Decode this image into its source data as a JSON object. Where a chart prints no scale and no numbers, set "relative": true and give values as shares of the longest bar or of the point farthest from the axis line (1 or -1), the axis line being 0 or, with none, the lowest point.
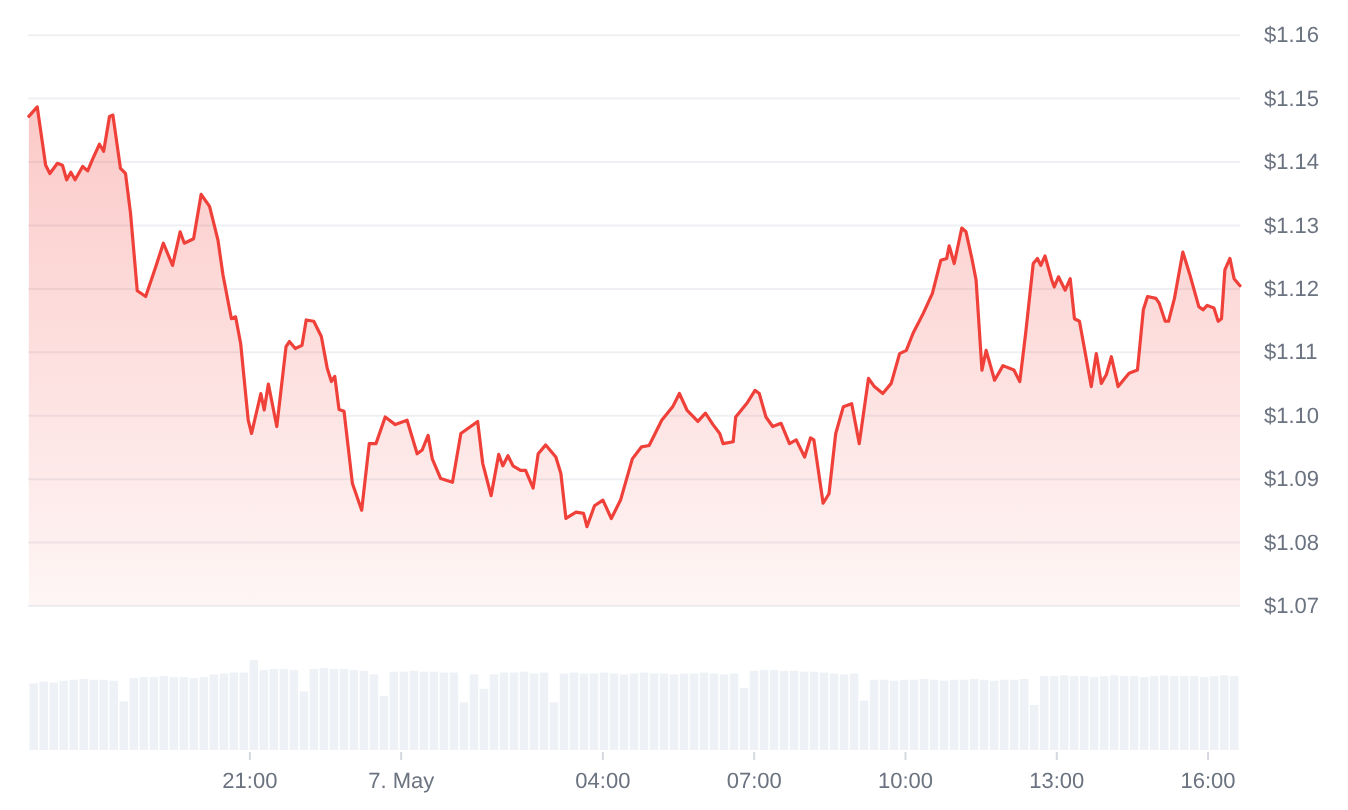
{
  "chart_data": [
    {
      "type": "area",
      "x": [
        "--05-06T16:37",
        "--05-06T16:47",
        "--05-06T16:57",
        "--05-06T17:02",
        "--05-06T17:11",
        "--05-06T17:17",
        "--05-06T17:22",
        "--05-06T17:27",
        "--05-06T17:32",
        "--05-06T17:41",
        "--05-06T17:47",
        "--05-06T17:53",
        "--05-06T18:01",
        "--05-06T18:06",
        "--05-06T18:13",
        "--05-06T18:17",
        "--05-06T18:26",
        "--05-06T18:32",
        "--05-06T18:38",
        "--05-06T18:46",
        "--05-06T18:56",
        "--05-06T19:08",
        "--05-06T19:17",
        "--05-06T19:28",
        "--05-06T19:37",
        "--05-06T19:42",
        "--05-06T19:53",
        "--05-06T20:02",
        "--05-06T20:12",
        "--05-06T20:22",
        "--05-06T20:28",
        "--05-06T20:38",
        "--05-06T20:43",
        "--05-06T20:49",
        "--05-06T20:58",
        "--05-06T21:02",
        "--05-06T21:13",
        "--05-06T21:17",
        "--05-06T21:22",
        "--05-06T21:32",
        "--05-06T21:43",
        "--05-06T21:47",
        "--05-06T21:54",
        "--05-06T22:02",
        "--05-06T22:07",
        "--05-06T22:16",
        "--05-06T22:25",
        "--05-06T22:32",
        "--05-06T22:37",
        "--05-06T22:41",
        "--05-06T22:46",
        "--05-06T22:52",
        "--05-06T23:02",
        "--05-06T23:13",
        "--05-06T23:22",
        "--05-06T23:30",
        "--05-06T23:41",
        "--05-06T23:53",
        "--05-07T00:07",
        "--05-07T00:19",
        "--05-07T00:25",
        "--05-07T00:32",
        "--05-07T00:37",
        "--05-07T00:47",
        "--05-07T01:01",
        "--05-07T01:11",
        "--05-07T01:31",
        "--05-07T01:37",
        "--05-07T01:47",
        "--05-07T01:56",
        "--05-07T02:01",
        "--05-07T02:07",
        "--05-07T02:13",
        "--05-07T02:22",
        "--05-07T02:28",
        "--05-07T02:37",
        "--05-07T02:43",
        "--05-07T02:52",
        "--05-07T03:04",
        "--05-07T03:10",
        "--05-07T03:16",
        "--05-07T03:28",
        "--05-07T03:37",
        "--05-07T03:41",
        "--05-07T03:50",
        "--05-07T04:00",
        "--05-07T04:10",
        "--05-07T04:21",
        "--05-07T04:35",
        "--05-07T04:46",
        "--05-07T04:55",
        "--05-07T05:10",
        "--05-07T05:23",
        "--05-07T05:31",
        "--05-07T05:40",
        "--05-07T05:53",
        "--05-07T06:02",
        "--05-07T06:11",
        "--05-07T06:19",
        "--05-07T06:23",
        "--05-07T06:35",
        "--05-07T06:38",
        "--05-07T06:52",
        "--05-07T07:01",
        "--05-07T07:06",
        "--05-07T07:14",
        "--05-07T07:22",
        "--05-07T07:32",
        "--05-07T07:42",
        "--05-07T07:50",
        "--05-07T08:00",
        "--05-07T08:07",
        "--05-07T08:11",
        "--05-07T08:22",
        "--05-07T08:29",
        "--05-07T08:37",
        "--05-07T08:46",
        "--05-07T08:56",
        "--05-07T09:05",
        "--05-07T09:16",
        "--05-07T09:23",
        "--05-07T09:33",
        "--05-07T09:43",
        "--05-07T09:53",
        "--05-07T10:01",
        "--05-07T10:09",
        "--05-07T10:21",
        "--05-07T10:32",
        "--05-07T10:42",
        "--05-07T10:49",
        "--05-07T10:52",
        "--05-07T10:58",
        "--05-07T11:07",
        "--05-07T11:12",
        "--05-07T11:19",
        "--05-07T11:24",
        "--05-07T11:31",
        "--05-07T11:36",
        "--05-07T11:46",
        "--05-07T11:56",
        "--05-07T12:09",
        "--05-07T12:16",
        "--05-07T12:23",
        "--05-07T12:32",
        "--05-07T12:37",
        "--05-07T12:41",
        "--05-07T12:46",
        "--05-07T12:54",
        "--05-07T12:57",
        "--05-07T13:02",
        "--05-07T13:10",
        "--05-07T13:16",
        "--05-07T13:21",
        "--05-07T13:27",
        "--05-07T13:34",
        "--05-07T13:41",
        "--05-07T13:47",
        "--05-07T13:53",
        "--05-07T13:59",
        "--05-07T14:05",
        "--05-07T14:13",
        "--05-07T14:26",
        "--05-07T14:36",
        "--05-07T14:43",
        "--05-07T14:48",
        "--05-07T14:58",
        "--05-07T15:02",
        "--05-07T15:09",
        "--05-07T15:13",
        "--05-07T15:20",
        "--05-07T15:30",
        "--05-07T15:38",
        "--05-07T15:49",
        "--05-07T15:54",
        "--05-07T15:59",
        "--05-07T16:07",
        "--05-07T16:12",
        "--05-07T16:16",
        "--05-07T16:20",
        "--05-07T16:26",
        "--05-07T16:31",
        "--05-07T16:38"
      ],
      "series": [
        {
          "color": "#f0403a",
          "values": [
            1.1472,
            1.1487,
            1.1395,
            1.1382,
            1.1398,
            1.1395,
            1.1372,
            1.1384,
            1.1372,
            1.1393,
            1.1386,
            1.1405,
            1.1428,
            1.1417,
            1.1472,
            1.1474,
            1.139,
            1.1382,
            1.1319,
            1.1197,
            1.1188,
            1.1235,
            1.1272,
            1.1237,
            1.129,
            1.1272,
            1.1279,
            1.1349,
            1.133,
            1.1277,
            1.1222,
            1.1153,
            1.1156,
            1.1114,
            1.0993,
            1.0972,
            1.1035,
            1.1009,
            1.105,
            1.0983,
            1.1109,
            1.1117,
            1.1106,
            1.1111,
            1.1151,
            1.1149,
            1.1125,
            1.1075,
            1.1054,
            1.1062,
            1.101,
            1.1007,
            1.0893,
            1.0851,
            1.0956,
            1.0956,
            1.0998,
            1.0986,
            1.0993,
            1.094,
            1.0946,
            1.0969,
            1.0932,
            1.0901,
            1.0895,
            1.0972,
            1.0991,
            1.0925,
            1.0874,
            1.0939,
            1.0921,
            1.0937,
            1.0921,
            1.0914,
            1.0914,
            1.0886,
            1.094,
            1.0954,
            1.0935,
            1.0909,
            1.0838,
            1.0848,
            1.0846,
            1.0825,
            1.0858,
            1.0867,
            1.0838,
            1.0867,
            1.0932,
            1.0951,
            1.0953,
            1.0993,
            1.1014,
            1.1035,
            1.1009,
            1.0991,
            1.1004,
            1.0986,
            1.0972,
            1.0956,
            1.0959,
            1.0998,
            1.1021,
            1.104,
            1.1035,
            1.0998,
            1.0983,
            1.0988,
            1.0956,
            1.0962,
            1.0935,
            1.0965,
            1.0962,
            1.0862,
            1.0877,
            1.0972,
            1.1014,
            1.1019,
            1.0956,
            1.1059,
            1.1046,
            1.1035,
            1.1051,
            1.1098,
            1.1103,
            1.113,
            1.1161,
            1.1193,
            1.1245,
            1.1248,
            1.1268,
            1.124,
            1.1296,
            1.129,
            1.1248,
            1.1214,
            1.1072,
            1.1103,
            1.1056,
            1.1079,
            1.1072,
            1.1054,
            1.113,
            1.124,
            1.1248,
            1.1237,
            1.1252,
            1.1214,
            1.1203,
            1.1219,
            1.1198,
            1.1216,
            1.1153,
            1.1149,
            1.1098,
            1.1046,
            1.1098,
            1.1051,
            1.1065,
            1.1093,
            1.1046,
            1.1067,
            1.1072,
            1.1167,
            1.1188,
            1.1185,
            1.1177,
            1.1149,
            1.1149,
            1.1185,
            1.1258,
            1.1224,
            1.1172,
            1.1167,
            1.1174,
            1.117,
            1.1149,
            1.1153,
            1.123,
            1.1248,
            1.1216,
            1.1205
          ]
        }
      ],
      "xlim": [
        "--05-06T16:36",
        "--05-07T16:38"
      ],
      "xticks": [
        {
          "value": "--05-06T21:00",
          "label": "21:00"
        },
        {
          "value": "--05-07T00:00",
          "label": "7. May"
        },
        {
          "value": "--05-07T04:00",
          "label": "04:00"
        },
        {
          "value": "--05-07T07:00",
          "label": "07:00"
        },
        {
          "value": "--05-07T10:00",
          "label": "10:00"
        },
        {
          "value": "--05-07T13:00",
          "label": "13:00"
        },
        {
          "value": "--05-07T16:00",
          "label": "16:00"
        }
      ],
      "ylim": [
        1.07,
        1.16
      ],
      "yticks": [
        {
          "value": 1.07,
          "label": "$1.07"
        },
        {
          "value": 1.08,
          "label": "$1.08"
        },
        {
          "value": 1.09,
          "label": "$1.09"
        },
        {
          "value": 1.1,
          "label": "$1.10"
        },
        {
          "value": 1.11,
          "label": "$1.11"
        },
        {
          "value": 1.12,
          "label": "$1.12"
        },
        {
          "value": 1.13,
          "label": "$1.13"
        },
        {
          "value": 1.14,
          "label": "$1.14"
        },
        {
          "value": 1.15,
          "label": "$1.15"
        },
        {
          "value": 1.16,
          "label": "$1.16"
        }
      ],
      "grid": "y"
    },
    {
      "type": "bar",
      "relative": true,
      "color": "#eef1f5",
      "categories": [
        null,
        null,
        null,
        null,
        null,
        null,
        null,
        null,
        null,
        null,
        null,
        null,
        null,
        null,
        null,
        null,
        null,
        null,
        null,
        null,
        null,
        null,
        null,
        null,
        null,
        null,
        null,
        null,
        null,
        null,
        null,
        null,
        null,
        null,
        null,
        null,
        null,
        null,
        null,
        null,
        null,
        null,
        null,
        null,
        null,
        null,
        null,
        null,
        null,
        null,
        null,
        null,
        null,
        null,
        null,
        null,
        null,
        null,
        null,
        null,
        null,
        null,
        null,
        null,
        null,
        null,
        null,
        null,
        null,
        null,
        null,
        null,
        null,
        null,
        null,
        null,
        null,
        null,
        null,
        null,
        null,
        null,
        null,
        null,
        null,
        null,
        null,
        null,
        null,
        null,
        null,
        null,
        null,
        null,
        null,
        null,
        null,
        null,
        null,
        null,
        null,
        null,
        null,
        null,
        null,
        null,
        null,
        null,
        null,
        null,
        null,
        null,
        null,
        null,
        null,
        null,
        null,
        null,
        null,
        null,
        null
      ],
      "values": [
        0.74,
        0.76,
        0.75,
        0.77,
        0.78,
        0.79,
        0.78,
        0.78,
        0.77,
        0.54,
        0.8,
        0.81,
        0.81,
        0.82,
        0.81,
        0.81,
        0.8,
        0.81,
        0.84,
        0.85,
        0.86,
        0.86,
        1,
        0.89,
        0.9,
        0.9,
        0.89,
        0.65,
        0.9,
        0.91,
        0.9,
        0.9,
        0.89,
        0.88,
        0.84,
        0.6,
        0.87,
        0.87,
        0.88,
        0.87,
        0.87,
        0.86,
        0.86,
        0.53,
        0.84,
        0.68,
        0.84,
        0.86,
        0.86,
        0.87,
        0.85,
        0.86,
        0.53,
        0.85,
        0.86,
        0.85,
        0.85,
        0.86,
        0.85,
        0.84,
        0.85,
        0.86,
        0.85,
        0.85,
        0.84,
        0.85,
        0.85,
        0.86,
        0.85,
        0.84,
        0.85,
        0.69,
        0.88,
        0.89,
        0.89,
        0.88,
        0.88,
        0.87,
        0.87,
        0.86,
        0.85,
        0.84,
        0.85,
        0.55,
        0.78,
        0.78,
        0.77,
        0.78,
        0.78,
        0.79,
        0.78,
        0.77,
        0.78,
        0.78,
        0.79,
        0.78,
        0.77,
        0.78,
        0.78,
        0.79,
        0.5,
        0.82,
        0.82,
        0.83,
        0.82,
        0.82,
        0.81,
        0.82,
        0.83,
        0.82,
        0.82,
        0.81,
        0.82,
        0.83,
        0.82,
        0.82,
        0.82,
        0.81,
        0.82,
        0.83,
        0.82
      ]
    }
  ]
}
